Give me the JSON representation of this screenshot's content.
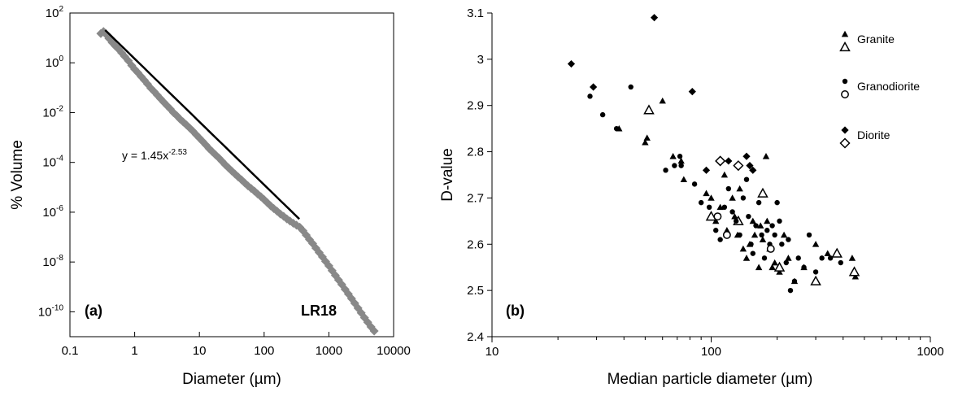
{
  "chart_data": [
    {
      "type": "scatter",
      "panel_label": "(a)",
      "sample_label": "LR18",
      "xlabel": "Diameter (µm)",
      "ylabel": "% Volume",
      "xscale": "log",
      "yscale": "log",
      "xlim": [
        0.1,
        10000
      ],
      "ylim": [
        1e-11,
        100
      ],
      "xticks": [
        "0.1",
        "1",
        "10",
        "100",
        "1000",
        "10000"
      ],
      "yticks": [
        {
          "base": "10",
          "exp": "-10",
          "value": 1e-10
        },
        {
          "base": "10",
          "exp": "-8",
          "value": 1e-08
        },
        {
          "base": "10",
          "exp": "-6",
          "value": 1e-06
        },
        {
          "base": "10",
          "exp": "-4",
          "value": 0.0001
        },
        {
          "base": "10",
          "exp": "-2",
          "value": 0.01
        },
        {
          "base": "10",
          "exp": "0",
          "value": 1
        },
        {
          "base": "10",
          "exp": "2",
          "value": 100
        }
      ],
      "equation": {
        "text": "y = 1.45x",
        "exp": "-2.53"
      },
      "fit": {
        "a": 1.45,
        "b": -2.53,
        "x_range": [
          0.35,
          350
        ]
      },
      "points": [
        [
          0.3,
          15
        ],
        [
          0.33,
          18
        ],
        [
          0.36,
          14
        ],
        [
          0.4,
          9.5
        ],
        [
          0.45,
          6.5
        ],
        [
          0.5,
          4.8
        ],
        [
          0.56,
          3.6
        ],
        [
          0.63,
          2.5
        ],
        [
          0.7,
          1.8
        ],
        [
          0.8,
          1.2
        ],
        [
          0.9,
          0.78
        ],
        [
          1.0,
          0.55
        ],
        [
          1.12,
          0.4
        ],
        [
          1.26,
          0.28
        ],
        [
          1.41,
          0.2
        ],
        [
          1.58,
          0.14
        ],
        [
          1.78,
          0.095
        ],
        [
          2.0,
          0.07
        ],
        [
          2.24,
          0.05
        ],
        [
          2.51,
          0.036
        ],
        [
          2.82,
          0.026
        ],
        [
          3.16,
          0.019
        ],
        [
          3.55,
          0.014
        ],
        [
          3.98,
          0.01
        ],
        [
          4.47,
          0.0075
        ],
        [
          5.01,
          0.0055
        ],
        [
          5.62,
          0.0042
        ],
        [
          6.31,
          0.0032
        ],
        [
          7.08,
          0.0024
        ],
        [
          7.94,
          0.0018
        ],
        [
          8.91,
          0.0013
        ],
        [
          10,
          0.00095
        ],
        [
          11.2,
          0.0007
        ],
        [
          12.6,
          0.0005
        ],
        [
          14.1,
          0.00036
        ],
        [
          15.8,
          0.00027
        ],
        [
          17.8,
          0.0002
        ],
        [
          20,
          0.00015
        ],
        [
          22.4,
          0.00011
        ],
        [
          25.1,
          8e-05
        ],
        [
          28.2,
          6e-05
        ],
        [
          31.6,
          4.5e-05
        ],
        [
          35.5,
          3.4e-05
        ],
        [
          39.8,
          2.6e-05
        ],
        [
          44.7,
          2e-05
        ],
        [
          50.1,
          1.5e-05
        ],
        [
          56.2,
          1.15e-05
        ],
        [
          63.1,
          9e-06
        ],
        [
          70.8,
          7e-06
        ],
        [
          79.4,
          5.4e-06
        ],
        [
          89.1,
          4.2e-06
        ],
        [
          100,
          3.2e-06
        ],
        [
          112,
          2.4e-06
        ],
        [
          126,
          1.8e-06
        ],
        [
          141,
          1.4e-06
        ],
        [
          158,
          1.1e-06
        ],
        [
          178,
          8.5e-07
        ],
        [
          200,
          6.8e-07
        ],
        [
          224,
          5.4e-07
        ],
        [
          251,
          4.4e-07
        ],
        [
          282,
          3.6e-07
        ],
        [
          316,
          3e-07
        ],
        [
          355,
          2.5e-07
        ],
        [
          398,
          1.8e-07
        ],
        [
          447,
          1.2e-07
        ],
        [
          501,
          8e-08
        ],
        [
          562,
          5.5e-08
        ],
        [
          631,
          3.6e-08
        ],
        [
          708,
          2.4e-08
        ],
        [
          794,
          1.6e-08
        ],
        [
          891,
          1.05e-08
        ],
        [
          1000,
          7e-09
        ],
        [
          1120,
          4.5e-09
        ],
        [
          1260,
          2.9e-09
        ],
        [
          1410,
          1.9e-09
        ],
        [
          1580,
          1.25e-09
        ],
        [
          1780,
          8e-10
        ],
        [
          2000,
          5.2e-10
        ],
        [
          2240,
          3.4e-10
        ],
        [
          2510,
          2.2e-10
        ],
        [
          2820,
          1.4e-10
        ],
        [
          3160,
          9e-11
        ],
        [
          3550,
          5.8e-11
        ],
        [
          3980,
          3.8e-11
        ],
        [
          4470,
          2.5e-11
        ],
        [
          5010,
          1.7e-11
        ]
      ]
    },
    {
      "type": "scatter",
      "panel_label": "(b)",
      "xlabel": "Median particle diameter (µm)",
      "ylabel": "D-value",
      "xscale": "log",
      "xlim": [
        10,
        1000
      ],
      "ylim": [
        2.4,
        3.1
      ],
      "xticks": [
        "10",
        "100",
        "1000"
      ],
      "yticks": [
        "2.4",
        "2.5",
        "2.6",
        "2.7",
        "2.8",
        "2.9",
        "3",
        "3.1"
      ],
      "legend_position": "top-right",
      "legend": [
        {
          "label": "Granite",
          "markers": [
            "triangle-filled",
            "triangle-open"
          ]
        },
        {
          "label": "Granodiorite",
          "markers": [
            "circle-filled",
            "circle-open"
          ]
        },
        {
          "label": "Diorite",
          "markers": [
            "diamond-filled",
            "diamond-open"
          ]
        }
      ],
      "series": [
        {
          "marker": "triangle-filled",
          "points": [
            [
              38,
              2.85
            ],
            [
              50,
              2.82
            ],
            [
              51,
              2.83
            ],
            [
              60,
              2.91
            ],
            [
              67,
              2.79
            ],
            [
              73,
              2.78
            ],
            [
              75,
              2.74
            ],
            [
              95,
              2.71
            ],
            [
              100,
              2.7
            ],
            [
              105,
              2.65
            ],
            [
              110,
              2.68
            ],
            [
              115,
              2.75
            ],
            [
              118,
              2.63
            ],
            [
              125,
              2.7
            ],
            [
              128,
              2.66
            ],
            [
              132,
              2.62
            ],
            [
              135,
              2.72
            ],
            [
              140,
              2.59
            ],
            [
              145,
              2.57
            ],
            [
              150,
              2.6
            ],
            [
              155,
              2.65
            ],
            [
              158,
              2.62
            ],
            [
              165,
              2.55
            ],
            [
              168,
              2.64
            ],
            [
              172,
              2.61
            ],
            [
              178,
              2.79
            ],
            [
              180,
              2.65
            ],
            [
              185,
              2.59
            ],
            [
              190,
              2.55
            ],
            [
              195,
              2.56
            ],
            [
              205,
              2.54
            ],
            [
              215,
              2.62
            ],
            [
              225,
              2.57
            ],
            [
              240,
              2.52
            ],
            [
              265,
              2.55
            ],
            [
              300,
              2.6
            ],
            [
              340,
              2.58
            ],
            [
              440,
              2.57
            ],
            [
              455,
              2.53
            ]
          ]
        },
        {
          "marker": "triangle-open",
          "points": [
            [
              52,
              2.89
            ],
            [
              100,
              2.66
            ],
            [
              133,
              2.65
            ],
            [
              172,
              2.71
            ],
            [
              205,
              2.55
            ],
            [
              300,
              2.52
            ],
            [
              375,
              2.58
            ],
            [
              450,
              2.54
            ]
          ]
        },
        {
          "marker": "circle-filled",
          "points": [
            [
              28,
              2.92
            ],
            [
              32,
              2.88
            ],
            [
              37,
              2.85
            ],
            [
              43,
              2.94
            ],
            [
              62,
              2.76
            ],
            [
              68,
              2.77
            ],
            [
              72,
              2.79
            ],
            [
              73,
              2.77
            ],
            [
              84,
              2.73
            ],
            [
              90,
              2.69
            ],
            [
              98,
              2.68
            ],
            [
              105,
              2.63
            ],
            [
              110,
              2.61
            ],
            [
              115,
              2.68
            ],
            [
              120,
              2.72
            ],
            [
              125,
              2.67
            ],
            [
              130,
              2.65
            ],
            [
              135,
              2.62
            ],
            [
              140,
              2.7
            ],
            [
              145,
              2.74
            ],
            [
              148,
              2.66
            ],
            [
              152,
              2.6
            ],
            [
              155,
              2.58
            ],
            [
              160,
              2.64
            ],
            [
              165,
              2.69
            ],
            [
              170,
              2.62
            ],
            [
              175,
              2.57
            ],
            [
              180,
              2.63
            ],
            [
              185,
              2.6
            ],
            [
              190,
              2.64
            ],
            [
              195,
              2.62
            ],
            [
              200,
              2.69
            ],
            [
              205,
              2.65
            ],
            [
              210,
              2.6
            ],
            [
              220,
              2.56
            ],
            [
              225,
              2.61
            ],
            [
              230,
              2.5
            ],
            [
              240,
              2.52
            ],
            [
              250,
              2.57
            ],
            [
              265,
              2.55
            ],
            [
              280,
              2.62
            ],
            [
              300,
              2.54
            ],
            [
              320,
              2.57
            ],
            [
              350,
              2.57
            ],
            [
              390,
              2.56
            ]
          ]
        },
        {
          "marker": "circle-open",
          "points": [
            [
              107,
              2.66
            ],
            [
              118,
              2.62
            ],
            [
              187,
              2.59
            ]
          ]
        },
        {
          "marker": "diamond-filled",
          "points": [
            [
              23,
              2.99
            ],
            [
              29,
              2.94
            ],
            [
              55,
              3.09
            ],
            [
              82,
              2.93
            ],
            [
              95,
              2.76
            ],
            [
              120,
              2.78
            ],
            [
              145,
              2.79
            ],
            [
              150,
              2.77
            ],
            [
              155,
              2.76
            ]
          ]
        },
        {
          "marker": "diamond-open",
          "points": [
            [
              110,
              2.78
            ],
            [
              133,
              2.77
            ]
          ]
        }
      ]
    }
  ]
}
